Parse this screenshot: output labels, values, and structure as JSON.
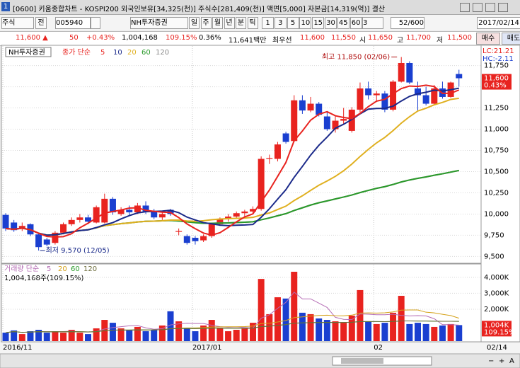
{
  "window": {
    "number": "1",
    "title": "[0600] 키움종합차트 - KOSPI200 외국인보유[34,325(천)] 주식수[281,409(천)] 액면[5,000] 자본금[14,319(억)] 결산"
  },
  "toolbar": {
    "market": "주식",
    "scope": "전",
    "code": "005940",
    "name": "NH투자증권",
    "periods": [
      "일",
      "주",
      "월",
      "년",
      "분",
      "틱"
    ],
    "intervals": [
      "1",
      "3",
      "5",
      "10",
      "15",
      "30",
      "45",
      "60"
    ],
    "interval_select": "3",
    "count": "52/600",
    "date": "2017/02/14"
  },
  "quote": {
    "price": "11,600 ▲",
    "change": "50",
    "change_rate": "+0.43%",
    "volume": "1,004,168",
    "volume_rate": "109.15%",
    "turnover": "0.36%",
    "amount": "11,641백만",
    "best_label": "최우선",
    "ask": "11,600",
    "bid": "11,550",
    "open_label": "시",
    "open": "11,650",
    "high_label": "고",
    "high": "11,700",
    "low_label": "저",
    "low": "11,500",
    "buy": "매수",
    "sell": "매도"
  },
  "chart_data": [
    {
      "type": "candlestick",
      "legend_source": "NH투자증권",
      "legend_label": "종가 단순",
      "ma_periods": [
        5,
        10,
        20,
        60,
        120
      ],
      "ma_colors": [
        "#e8231f",
        "#1b2a8a",
        "#e0b020",
        "#2a9a2a",
        "#8a8a8a"
      ],
      "up_color": "#e8231f",
      "down_color": "#1a3fd0",
      "categories": [
        "2016/11",
        null,
        null,
        null,
        null,
        null,
        null,
        null,
        null,
        null,
        null,
        null,
        null,
        null,
        null,
        null,
        null,
        null,
        null,
        null,
        null,
        null,
        null,
        "2017/01",
        null,
        null,
        null,
        null,
        null,
        null,
        null,
        null,
        null,
        null,
        null,
        null,
        null,
        null,
        null,
        null,
        null,
        null,
        null,
        null,
        null,
        "02",
        null,
        null,
        null,
        null,
        null,
        null,
        null,
        null,
        null,
        null
      ],
      "open": [
        9990,
        9900,
        9830,
        9880,
        9760,
        9700,
        9660,
        9780,
        9880,
        9930,
        9960,
        9900,
        9900,
        10180,
        10000,
        10050,
        10020,
        10100,
        10030,
        9960,
        10050,
        9790,
        9740,
        9720,
        9690,
        9740,
        9880,
        9940,
        9970,
        10010,
        10030,
        10060,
        10650,
        10650,
        10950,
        10860,
        11340,
        11220,
        11300,
        11150,
        11000,
        11100,
        10980,
        11230,
        11480,
        11400,
        11420,
        11230,
        11560,
        11780,
        11480,
        11400,
        11300,
        11480,
        11380,
        11650
      ],
      "high": [
        10010,
        9930,
        9900,
        9890,
        9780,
        9720,
        9800,
        9900,
        9960,
        10000,
        9990,
        10100,
        10240,
        10200,
        10080,
        10100,
        10130,
        10150,
        10060,
        10020,
        10060,
        9830,
        9760,
        9740,
        9760,
        9900,
        9960,
        10000,
        10030,
        10050,
        10090,
        10680,
        10700,
        10850,
        10970,
        11400,
        11400,
        11380,
        11320,
        11200,
        11150,
        11250,
        11260,
        11550,
        11560,
        11450,
        11450,
        11580,
        11850,
        11800,
        11560,
        11500,
        11520,
        11560,
        11560,
        11700
      ],
      "low": [
        9800,
        9790,
        9800,
        9740,
        9570,
        9620,
        9640,
        9760,
        9860,
        9900,
        9880,
        9890,
        9890,
        9990,
        9980,
        9990,
        10000,
        10000,
        9940,
        9930,
        9980,
        9750,
        9640,
        9640,
        9670,
        9720,
        9860,
        9910,
        9950,
        9970,
        10000,
        10040,
        10590,
        10620,
        10830,
        10850,
        11180,
        11200,
        11150,
        10980,
        10960,
        11050,
        10960,
        11200,
        11350,
        11320,
        11200,
        11210,
        11550,
        11530,
        11220,
        11280,
        11280,
        11360,
        11370,
        11500
      ],
      "close": [
        9830,
        9810,
        9860,
        9760,
        9610,
        9640,
        9780,
        9880,
        9930,
        9960,
        9910,
        10080,
        10180,
        10020,
        10050,
        10020,
        10100,
        10030,
        9960,
        10000,
        10000,
        9800,
        9660,
        9680,
        9740,
        9880,
        9940,
        9970,
        10010,
        10030,
        10060,
        10650,
        10660,
        10820,
        10850,
        11340,
        11220,
        11300,
        11170,
        11000,
        11100,
        11120,
        11230,
        11480,
        11400,
        11420,
        11230,
        11560,
        11780,
        11550,
        11400,
        11300,
        11480,
        11380,
        11550,
        11600
      ],
      "ylim": [
        9420,
        11980
      ],
      "yticks": [
        {
          "value": 11750,
          "label": "11,750"
        },
        {
          "value": 11500,
          "label": "11,500"
        },
        {
          "value": 11250,
          "label": "11,250"
        },
        {
          "value": 11000,
          "label": "11,000"
        },
        {
          "value": 10750,
          "label": "10,750"
        },
        {
          "value": 10500,
          "label": "10,500"
        },
        {
          "value": 10250,
          "label": "10,250"
        },
        {
          "value": 10000,
          "label": "10,000"
        },
        {
          "value": 9750,
          "label": "9,750"
        },
        {
          "value": 9500,
          "label": "9,500"
        }
      ],
      "last": {
        "value": 11600,
        "label": "11,600"
      },
      "last_change": "0.43%",
      "indicators": [
        "LC:21.21",
        "HC:-2.11"
      ],
      "high_note": "최고 11,850 (02/06)",
      "low_note": "최저 9,570 (12/05)",
      "end_date": "02/14",
      "grid": true
    },
    {
      "type": "bar",
      "legend_label": "거래량 단순",
      "ma_periods": [
        5,
        20,
        60,
        120
      ],
      "ma_colors": [
        "#b56db5",
        "#d4a017",
        "#2a9a2a",
        "#6b6b3a"
      ],
      "info": "1,004,168주(109.15%)",
      "values": [
        530,
        670,
        440,
        620,
        710,
        530,
        620,
        530,
        710,
        530,
        440,
        800,
        1330,
        1150,
        800,
        710,
        890,
        620,
        710,
        980,
        1870,
        1240,
        800,
        620,
        980,
        1330,
        800,
        620,
        710,
        800,
        1150,
        3900,
        1690,
        2750,
        2670,
        4350,
        1780,
        1690,
        1420,
        1330,
        1240,
        1150,
        1600,
        3200,
        1240,
        1070,
        1150,
        1780,
        2840,
        1070,
        1150,
        1070,
        890,
        980,
        1070,
        1004.168
      ],
      "ylim": [
        0,
        4750
      ],
      "yticks": [
        {
          "value": 4000,
          "label": "4,000K"
        },
        {
          "value": 3000,
          "label": "3,000K"
        },
        {
          "value": 2000,
          "label": "2,000K"
        }
      ],
      "last": {
        "value": 1004.168,
        "label": "1,004K"
      },
      "last_rate": "109.15%"
    }
  ],
  "footer": {
    "zoom_out": "−",
    "zoom_in": "+",
    "auto": "A"
  }
}
